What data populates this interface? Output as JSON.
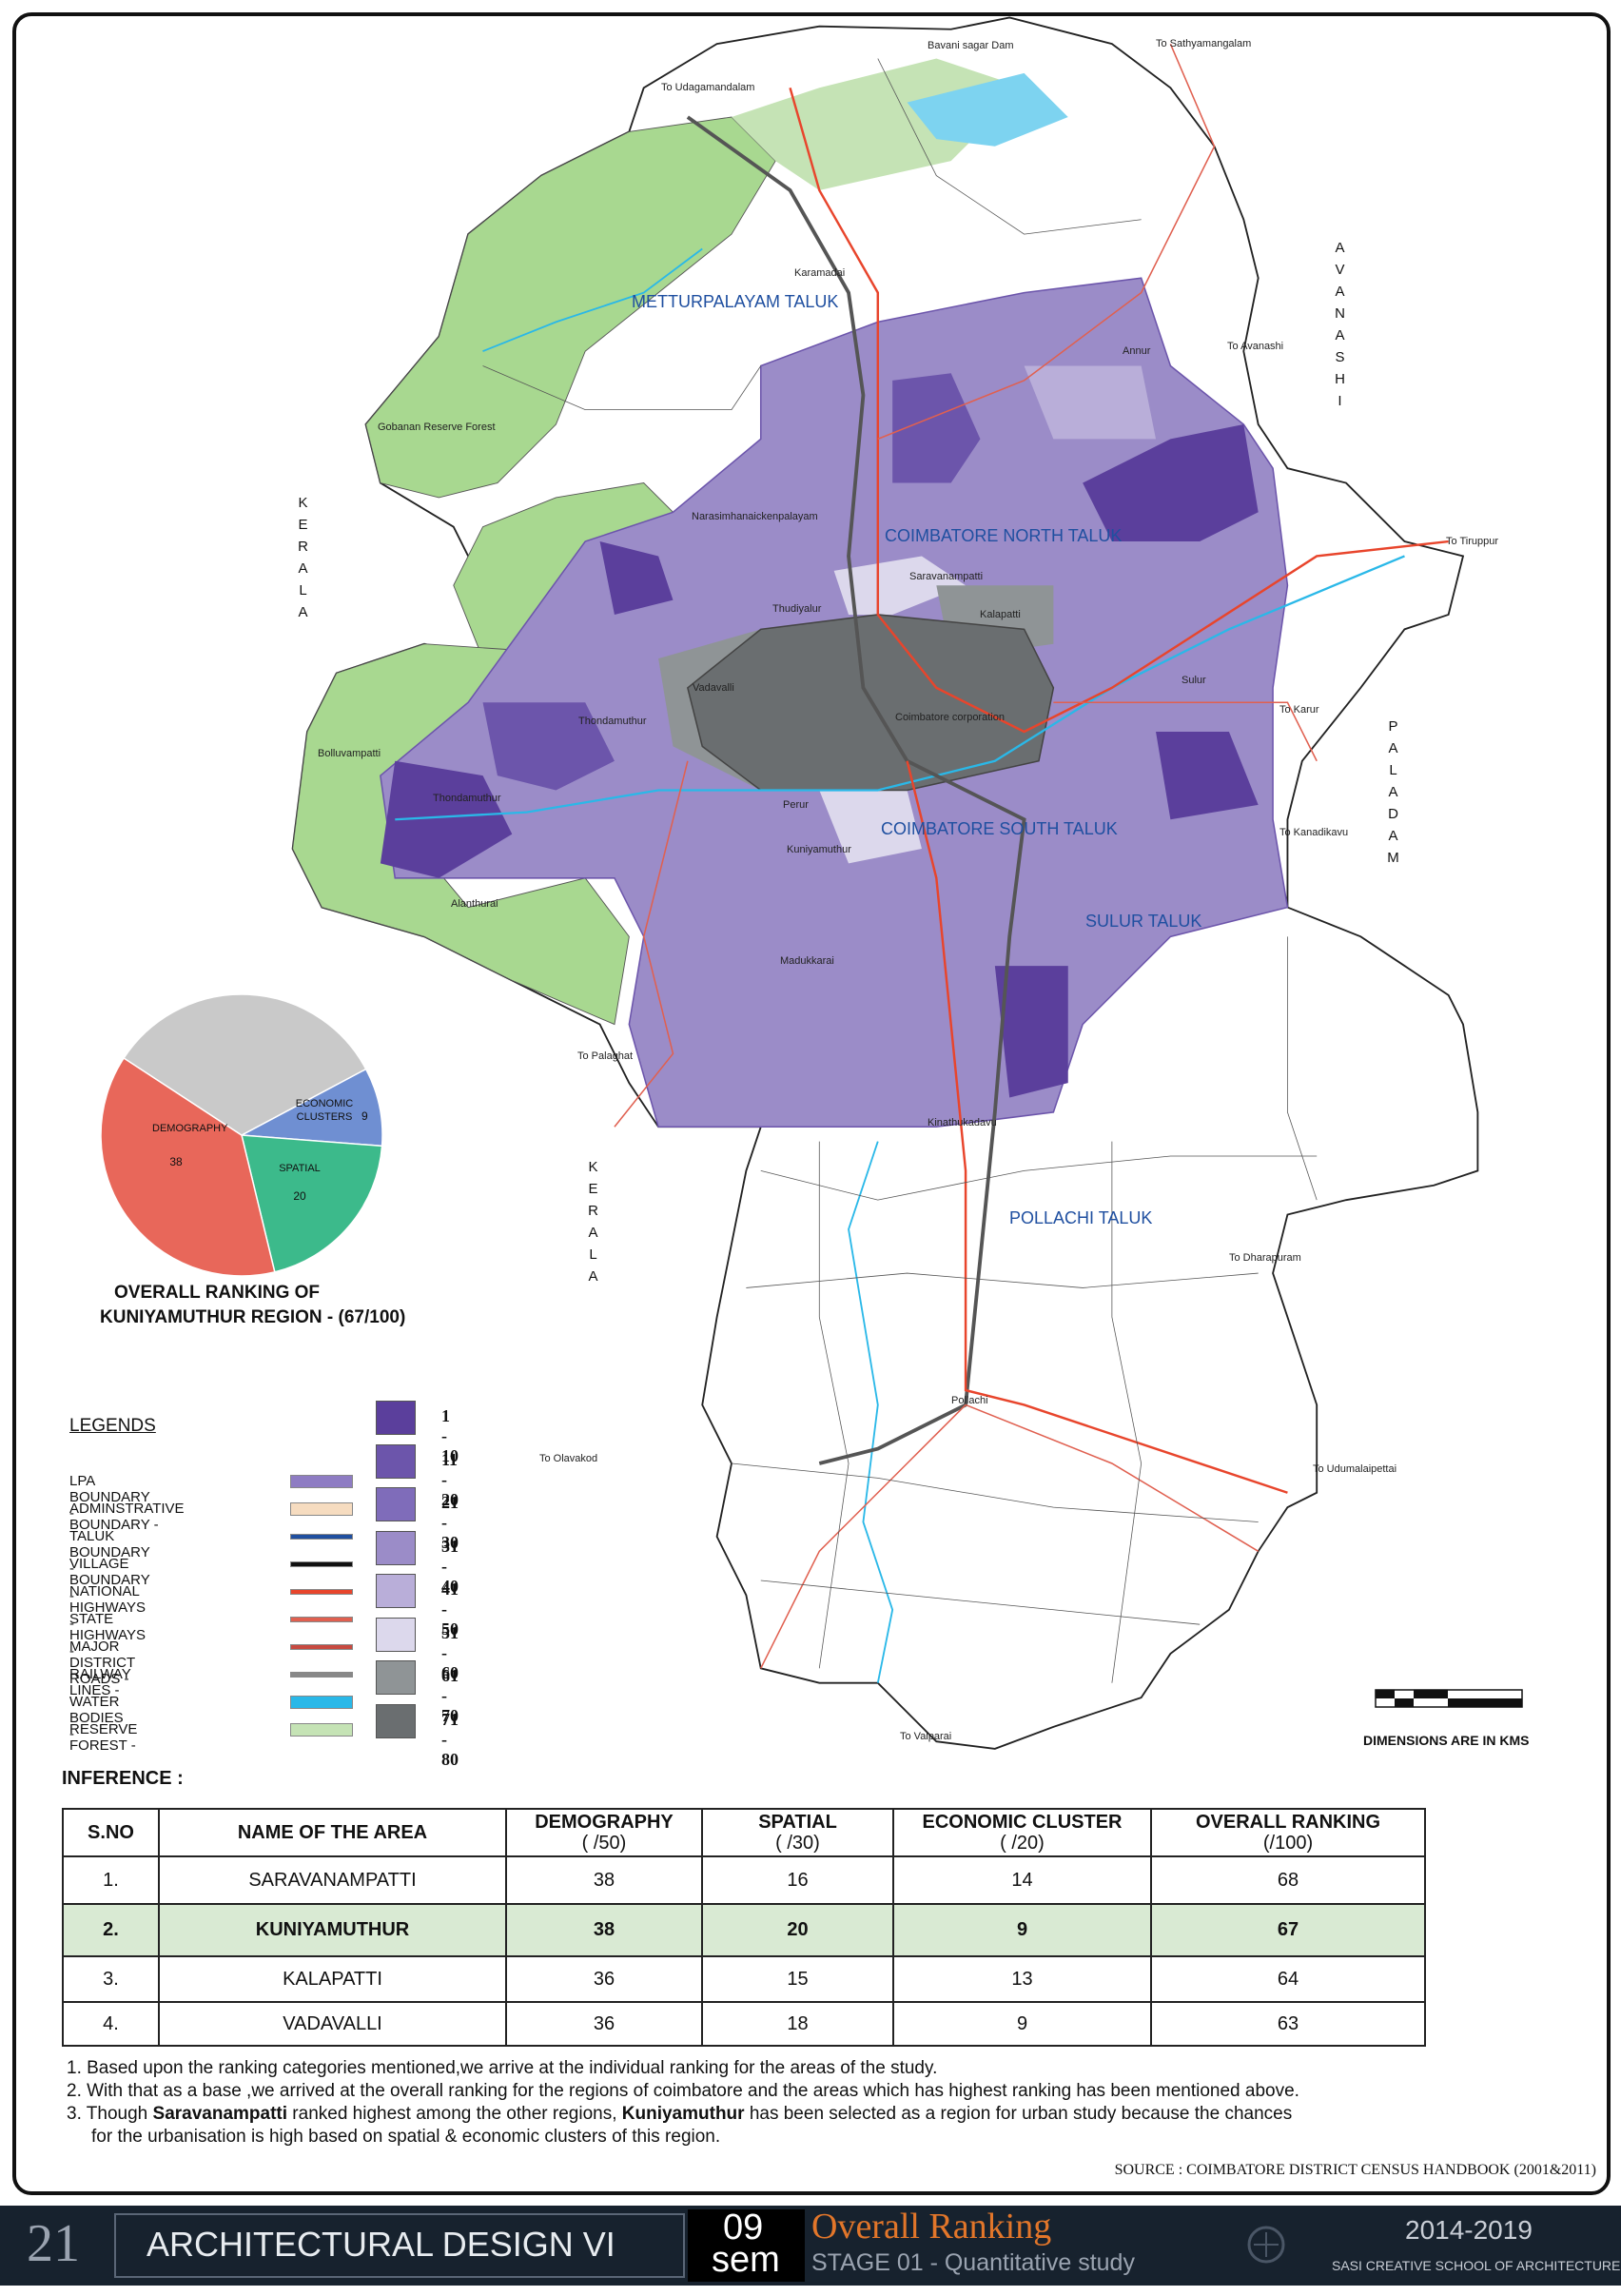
{
  "map": {
    "labels": [
      "METTURPALAYAM TALUK",
      "COIMBATORE NORTH TALUK",
      "COIMBATORE SOUTH TALUK",
      "SULUR TALUK",
      "POLLACHI TALUK",
      "Coimbatore corporation",
      "Kuniyamuthur",
      "Saravanampatti",
      "Kalapatti",
      "Vadavalli",
      "To Sathyamangalam",
      "To Udagamandalam",
      "To Palaghat",
      "To Dharapuram",
      "To Valparai",
      "To Tiruppur",
      "Bavani sagar Dam",
      "Gobanan Reserve Forest",
      "Bolluvampatti",
      "Thondamuthur",
      "Perur",
      "Pollachi",
      "Annur",
      "Sulur",
      "To Avanashi",
      "To Karur",
      "To Kanadikavu",
      "To Olavakod",
      "To Udumalaipettai",
      "Karamadai",
      "Madukkarai",
      "Thudiyalur",
      "Narasimhanaickenpalayam",
      "Kinathukadavu",
      "Thondamuthur",
      "Alanthurai"
    ],
    "vertical": [
      "KERALA",
      "KERALA",
      "AVANASHI",
      "PALADAM"
    ]
  },
  "chart_data": {
    "type": "pie",
    "title": [
      "OVERALL RANKING OF",
      "KUNIYAMUTHUR REGION - (67/100)"
    ],
    "categories": [
      "ECONOMIC CLUSTERS",
      "SPATIAL",
      "DEMOGRAPHY",
      null
    ],
    "values": [
      9,
      20,
      38,
      33
    ],
    "colors": [
      "#6f8fd2",
      "#3cba8b",
      "#e8675a",
      "#c9c9c9"
    ],
    "start_angle": -28
  },
  "legends": {
    "title": "LEGENDS",
    "items": [
      {
        "label": "LPA BOUNDARY -",
        "color": "#8e7cc3"
      },
      {
        "label": "ADMINSTRATIVE BOUNDARY -",
        "color": "#f6dcc0"
      },
      {
        "label": "TALUK BOUNDARY -",
        "color": "#1f4fa0"
      },
      {
        "label": "VILLAGE BOUNDARY -",
        "color": "#111111"
      },
      {
        "label": "NATIONAL HIGHWAYS -",
        "color": "#e8452c"
      },
      {
        "label": "STATE HIGHWAYS -",
        "color": "#e06050"
      },
      {
        "label": "MAJOR DISTRICT ROADS -",
        "color": "#c84a40"
      },
      {
        "label": "RAILWAY LINES -",
        "color": "#888888"
      },
      {
        "label": "WATER BODIES -",
        "color": "#2ab8e8"
      },
      {
        "label": "RESERVE FOREST -",
        "color": "#c5e3b5"
      }
    ],
    "ranks": [
      {
        "label": "1 - 10",
        "color": "#5b3f9c"
      },
      {
        "label": "11 - 20",
        "color": "#6c55ab"
      },
      {
        "label": "21 - 30",
        "color": "#7f6cba"
      },
      {
        "label": "31 - 40",
        "color": "#9b8cc8"
      },
      {
        "label": "41 - 50",
        "color": "#b9aed9"
      },
      {
        "label": "51 - 60",
        "color": "#dcd8ec"
      },
      {
        "label": "61 - 70",
        "color": "#8f9496"
      },
      {
        "label": "71 - 80",
        "color": "#6a6e70"
      }
    ],
    "scale_caption": "DIMENSIONS ARE IN KMS"
  },
  "inference": {
    "title": "INFERENCE :",
    "header": [
      {
        "name": "S.NO"
      },
      {
        "name": "NAME OF THE AREA"
      },
      {
        "name": "DEMOGRAPHY",
        "sub": "( /50)"
      },
      {
        "name": "SPATIAL",
        "sub": "( /30)"
      },
      {
        "name": "ECONOMIC CLUSTER",
        "sub": "( /20)"
      },
      {
        "name": "OVERALL RANKING",
        "sub": "(/100)"
      }
    ],
    "rows": [
      [
        "1.",
        "SARAVANAMPATTI",
        38,
        16,
        14,
        68
      ],
      [
        "2.",
        "KUNIYAMUTHUR",
        38,
        20,
        9,
        67
      ],
      [
        "3.",
        "KALAPATTI",
        36,
        15,
        13,
        64
      ],
      [
        "4.",
        "VADAVALLI",
        36,
        18,
        9,
        63
      ]
    ],
    "notes": [
      "1. Based upon the ranking categories mentioned,we arrive at the individual ranking for the areas of the study.",
      "2. With that as a base ,we arrived at the overall ranking for the regions of coimbatore and the areas which has highest ranking has been mentioned above."
    ],
    "note3": [
      "3. Though ",
      "Saravanampatti",
      " ranked highest among the other regions, ",
      "Kuniyamuthur",
      " has been selected as a region for urban study because the chances"
    ],
    "note3_cont": "for the  urbanisation is high based on spatial & economic clusters of this region.",
    "source": "SOURCE : COIMBATORE DISTRICT CENSUS HANDBOOK (2001&2011)"
  },
  "footer": {
    "page": "21",
    "course": "ARCHITECTURAL DESIGN VI",
    "sem_number": "09",
    "sem": "sem",
    "title": "Overall Ranking",
    "subtitle": "STAGE 01 - Quantitative study",
    "years": "2014-2019",
    "school": "SASI CREATIVE SCHOOL OF ARCHITECTURE"
  }
}
